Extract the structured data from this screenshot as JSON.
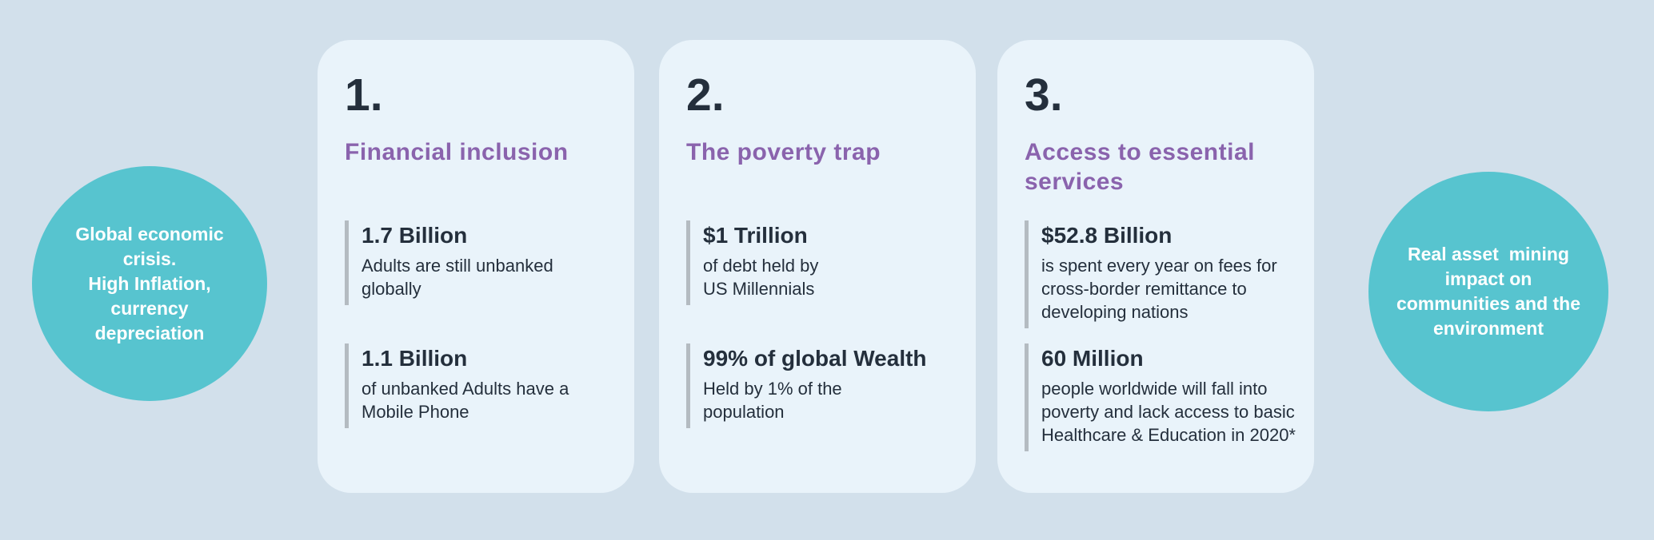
{
  "colors": {
    "page_bg": "#d2e0eb",
    "card_bg": "#e9f3fa",
    "teal": "#57c4cf",
    "purple": "#8a63ad",
    "dark": "#242f3c",
    "bar": "#b4bbc1",
    "white": "#ffffff"
  },
  "left_circle": {
    "text": "Global economic\ncrisis.\nHigh Inflation,\ncurrency\ndepreciation"
  },
  "right_circle": {
    "text": "Real asset  mining\nimpact on\ncommunities and the\nenvironment"
  },
  "cards": [
    {
      "number": "1.",
      "heading": "Financial inclusion",
      "stats": [
        {
          "value": "1.7 Billion",
          "desc": "Adults are still unbanked\nglobally"
        },
        {
          "value": "1.1 Billion",
          "desc": "of unbanked Adults have a\nMobile Phone"
        }
      ]
    },
    {
      "number": "2.",
      "heading": "The poverty trap",
      "stats": [
        {
          "value": "$1 Trillion",
          "desc": "of debt held by\nUS Millennials"
        },
        {
          "value": "99% of global Wealth",
          "desc": "Held by 1% of the\npopulation"
        }
      ]
    },
    {
      "number": "3.",
      "heading": "Access to essential\nservices",
      "stats": [
        {
          "value": "$52.8 Billion",
          "desc": "is spent every year on fees for\ncross-border remittance to\ndeveloping nations"
        },
        {
          "value": "60 Million",
          "desc": "people worldwide will fall into\npoverty and lack access to basic\nHealthcare & Education in 2020*"
        }
      ]
    }
  ]
}
